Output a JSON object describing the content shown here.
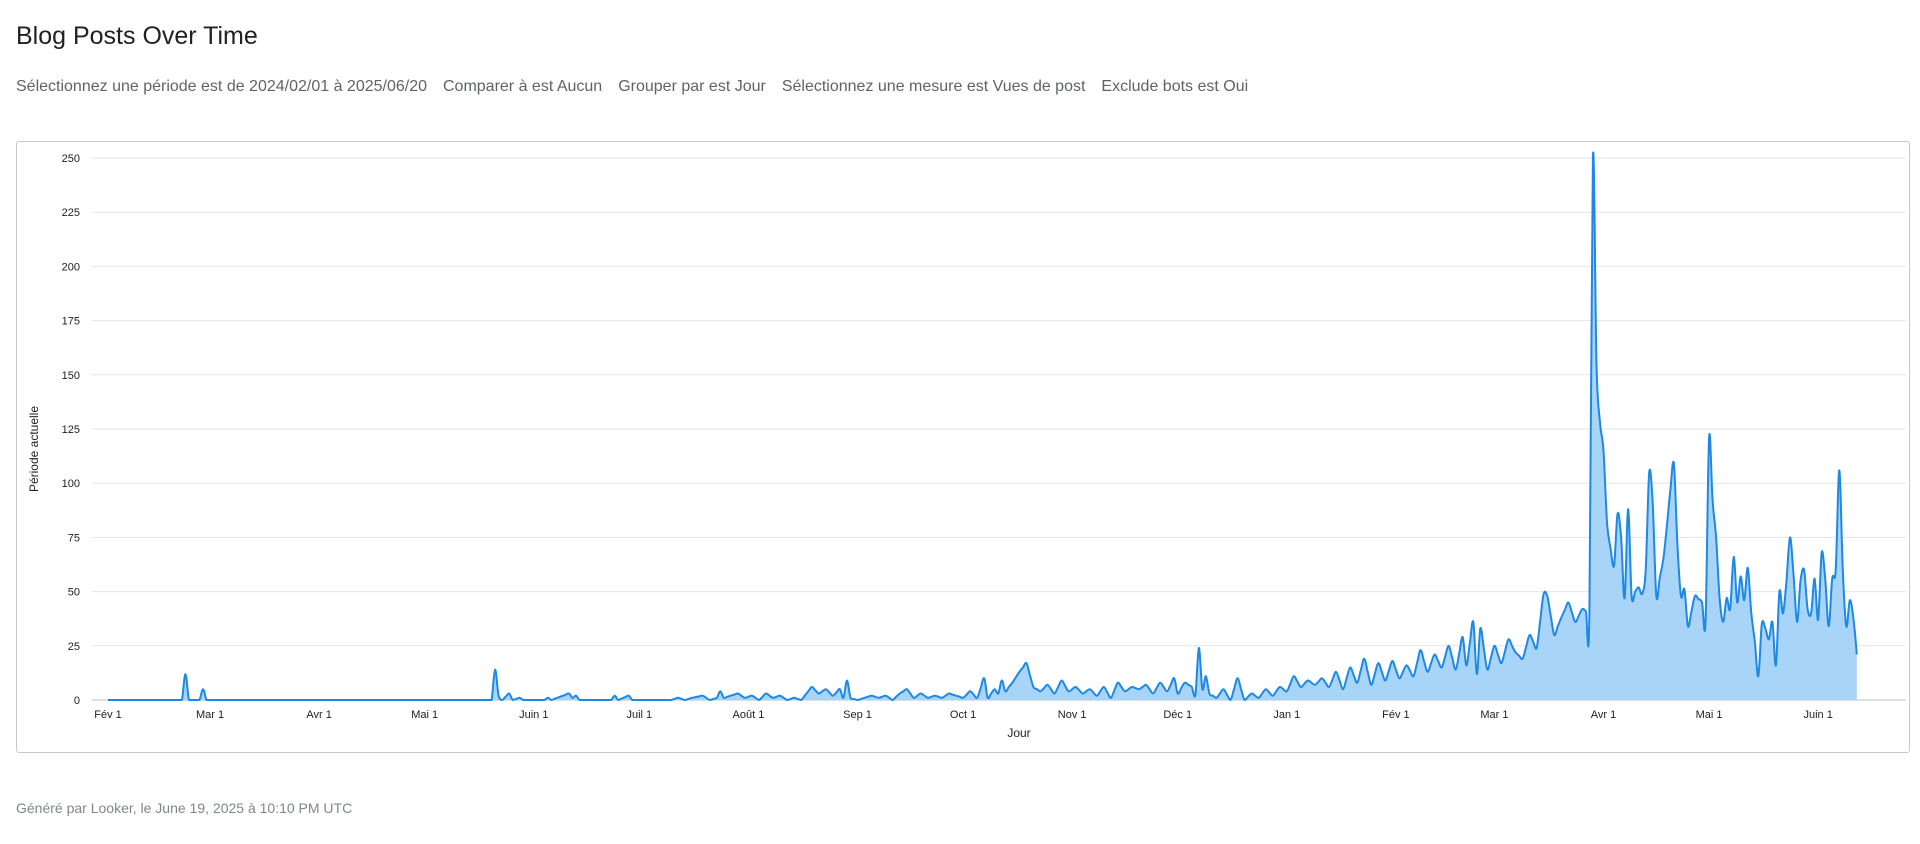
{
  "page": {
    "title": "Blog Posts Over Time",
    "filters": [
      "Sélectionnez une période est de 2024/02/01 à 2025/06/20",
      "Comparer à est Aucun",
      "Grouper par est Jour",
      "Sélectionnez une mesure est Vues de post",
      "Exclude bots est Oui"
    ],
    "footer": "Généré par Looker, le June 19, 2025 à 10:10 PM UTC"
  },
  "colors": {
    "line": "#1e88e5",
    "fill": "#a8d4f7",
    "grid": "#e3e5e8",
    "text": "#202124",
    "muted": "#5f6368"
  },
  "chart_data": {
    "type": "area",
    "xlabel": "Jour",
    "ylabel": "Période actuelle",
    "ylim": [
      0,
      250
    ],
    "y_ticks": [
      0,
      25,
      50,
      75,
      100,
      125,
      150,
      175,
      200,
      225,
      250
    ],
    "x_start": "2024-02-01",
    "x_end": "2025-06-20",
    "x_tick_labels": [
      {
        "date": "2024-02-01",
        "label": "Fév 1"
      },
      {
        "date": "2024-03-01",
        "label": "Mar 1"
      },
      {
        "date": "2024-04-01",
        "label": "Avr 1"
      },
      {
        "date": "2024-05-01",
        "label": "Mai 1"
      },
      {
        "date": "2024-06-01",
        "label": "Juin 1"
      },
      {
        "date": "2024-07-01",
        "label": "Juil 1"
      },
      {
        "date": "2024-08-01",
        "label": "Août 1"
      },
      {
        "date": "2024-09-01",
        "label": "Sep 1"
      },
      {
        "date": "2024-10-01",
        "label": "Oct 1"
      },
      {
        "date": "2024-11-01",
        "label": "Nov 1"
      },
      {
        "date": "2024-12-01",
        "label": "Déc 1"
      },
      {
        "date": "2025-01-01",
        "label": "Jan 1"
      },
      {
        "date": "2025-02-01",
        "label": "Fév 1"
      },
      {
        "date": "2025-03-01",
        "label": "Mar 1"
      },
      {
        "date": "2025-04-01",
        "label": "Avr 1"
      },
      {
        "date": "2025-05-01",
        "label": "Mai 1"
      },
      {
        "date": "2025-06-01",
        "label": "Juin 1"
      }
    ],
    "series": [
      {
        "points": [
          [
            "2024-02-01",
            0
          ],
          [
            "2024-02-22",
            0
          ],
          [
            "2024-02-23",
            12
          ],
          [
            "2024-02-24",
            0
          ],
          [
            "2024-02-27",
            0
          ],
          [
            "2024-02-28",
            5
          ],
          [
            "2024-02-29",
            0
          ],
          [
            "2024-05-20",
            0
          ],
          [
            "2024-05-21",
            14
          ],
          [
            "2024-05-22",
            2
          ],
          [
            "2024-05-23",
            0
          ],
          [
            "2024-05-25",
            3
          ],
          [
            "2024-05-26",
            0
          ],
          [
            "2024-05-28",
            1
          ],
          [
            "2024-05-29",
            0
          ],
          [
            "2024-06-04",
            0
          ],
          [
            "2024-06-05",
            1
          ],
          [
            "2024-06-06",
            0
          ],
          [
            "2024-06-11",
            3
          ],
          [
            "2024-06-12",
            1
          ],
          [
            "2024-06-13",
            2
          ],
          [
            "2024-06-14",
            0
          ],
          [
            "2024-06-23",
            0
          ],
          [
            "2024-06-24",
            2
          ],
          [
            "2024-06-25",
            0
          ],
          [
            "2024-06-28",
            2
          ],
          [
            "2024-06-29",
            0
          ],
          [
            "2024-07-10",
            0
          ],
          [
            "2024-07-12",
            1
          ],
          [
            "2024-07-14",
            0
          ],
          [
            "2024-07-16",
            1
          ],
          [
            "2024-07-19",
            2
          ],
          [
            "2024-07-21",
            0
          ],
          [
            "2024-07-23",
            1
          ],
          [
            "2024-07-24",
            4
          ],
          [
            "2024-07-25",
            1
          ],
          [
            "2024-07-27",
            2
          ],
          [
            "2024-07-29",
            3
          ],
          [
            "2024-07-31",
            1
          ],
          [
            "2024-08-02",
            2
          ],
          [
            "2024-08-04",
            0
          ],
          [
            "2024-08-06",
            3
          ],
          [
            "2024-08-08",
            1
          ],
          [
            "2024-08-10",
            2
          ],
          [
            "2024-08-12",
            0
          ],
          [
            "2024-08-14",
            1
          ],
          [
            "2024-08-16",
            0
          ],
          [
            "2024-08-17",
            2
          ],
          [
            "2024-08-19",
            6
          ],
          [
            "2024-08-21",
            3
          ],
          [
            "2024-08-23",
            5
          ],
          [
            "2024-08-25",
            2
          ],
          [
            "2024-08-27",
            5
          ],
          [
            "2024-08-28",
            1
          ],
          [
            "2024-08-29",
            9
          ],
          [
            "2024-08-30",
            1
          ],
          [
            "2024-09-01",
            0
          ],
          [
            "2024-09-03",
            1
          ],
          [
            "2024-09-05",
            2
          ],
          [
            "2024-09-07",
            1
          ],
          [
            "2024-09-09",
            2
          ],
          [
            "2024-09-11",
            0
          ],
          [
            "2024-09-13",
            3
          ],
          [
            "2024-09-15",
            5
          ],
          [
            "2024-09-17",
            1
          ],
          [
            "2024-09-19",
            3
          ],
          [
            "2024-09-21",
            1
          ],
          [
            "2024-09-23",
            2
          ],
          [
            "2024-09-25",
            1
          ],
          [
            "2024-09-27",
            3
          ],
          [
            "2024-09-29",
            2
          ],
          [
            "2024-10-01",
            1
          ],
          [
            "2024-10-03",
            4
          ],
          [
            "2024-10-05",
            1
          ],
          [
            "2024-10-07",
            10
          ],
          [
            "2024-10-08",
            1
          ],
          [
            "2024-10-10",
            5
          ],
          [
            "2024-10-11",
            3
          ],
          [
            "2024-10-12",
            9
          ],
          [
            "2024-10-13",
            4
          ],
          [
            "2024-10-15",
            8
          ],
          [
            "2024-10-17",
            13
          ],
          [
            "2024-10-19",
            17
          ],
          [
            "2024-10-21",
            6
          ],
          [
            "2024-10-23",
            4
          ],
          [
            "2024-10-25",
            7
          ],
          [
            "2024-10-27",
            3
          ],
          [
            "2024-10-29",
            9
          ],
          [
            "2024-10-31",
            4
          ],
          [
            "2024-11-02",
            6
          ],
          [
            "2024-11-04",
            3
          ],
          [
            "2024-11-06",
            5
          ],
          [
            "2024-11-08",
            2
          ],
          [
            "2024-11-10",
            6
          ],
          [
            "2024-11-12",
            1
          ],
          [
            "2024-11-14",
            8
          ],
          [
            "2024-11-16",
            4
          ],
          [
            "2024-11-18",
            6
          ],
          [
            "2024-11-20",
            5
          ],
          [
            "2024-11-22",
            7
          ],
          [
            "2024-11-24",
            3
          ],
          [
            "2024-11-26",
            8
          ],
          [
            "2024-11-28",
            4
          ],
          [
            "2024-11-30",
            10
          ],
          [
            "2024-12-01",
            3
          ],
          [
            "2024-12-03",
            8
          ],
          [
            "2024-12-05",
            6
          ],
          [
            "2024-12-06",
            2
          ],
          [
            "2024-12-07",
            24
          ],
          [
            "2024-12-08",
            5
          ],
          [
            "2024-12-09",
            11
          ],
          [
            "2024-12-10",
            3
          ],
          [
            "2024-12-12",
            1
          ],
          [
            "2024-12-14",
            5
          ],
          [
            "2024-12-16",
            0
          ],
          [
            "2024-12-18",
            10
          ],
          [
            "2024-12-20",
            0
          ],
          [
            "2024-12-22",
            3
          ],
          [
            "2024-12-24",
            1
          ],
          [
            "2024-12-26",
            5
          ],
          [
            "2024-12-28",
            2
          ],
          [
            "2024-12-30",
            6
          ],
          [
            "2025-01-01",
            4
          ],
          [
            "2025-01-03",
            11
          ],
          [
            "2025-01-05",
            6
          ],
          [
            "2025-01-07",
            9
          ],
          [
            "2025-01-09",
            7
          ],
          [
            "2025-01-11",
            10
          ],
          [
            "2025-01-13",
            6
          ],
          [
            "2025-01-15",
            13
          ],
          [
            "2025-01-17",
            5
          ],
          [
            "2025-01-19",
            15
          ],
          [
            "2025-01-21",
            8
          ],
          [
            "2025-01-23",
            19
          ],
          [
            "2025-01-25",
            7
          ],
          [
            "2025-01-27",
            17
          ],
          [
            "2025-01-29",
            9
          ],
          [
            "2025-01-31",
            18
          ],
          [
            "2025-02-02",
            10
          ],
          [
            "2025-02-04",
            16
          ],
          [
            "2025-02-06",
            11
          ],
          [
            "2025-02-08",
            23
          ],
          [
            "2025-02-10",
            13
          ],
          [
            "2025-02-12",
            21
          ],
          [
            "2025-02-14",
            15
          ],
          [
            "2025-02-16",
            25
          ],
          [
            "2025-02-18",
            14
          ],
          [
            "2025-02-20",
            29
          ],
          [
            "2025-02-21",
            16
          ],
          [
            "2025-02-23",
            36
          ],
          [
            "2025-02-24",
            12
          ],
          [
            "2025-02-25",
            33
          ],
          [
            "2025-02-27",
            14
          ],
          [
            "2025-03-01",
            25
          ],
          [
            "2025-03-03",
            17
          ],
          [
            "2025-03-05",
            28
          ],
          [
            "2025-03-07",
            22
          ],
          [
            "2025-03-09",
            19
          ],
          [
            "2025-03-11",
            30
          ],
          [
            "2025-03-13",
            24
          ],
          [
            "2025-03-15",
            49
          ],
          [
            "2025-03-16",
            48
          ],
          [
            "2025-03-18",
            30
          ],
          [
            "2025-03-20",
            38
          ],
          [
            "2025-03-22",
            45
          ],
          [
            "2025-03-24",
            36
          ],
          [
            "2025-03-26",
            42
          ],
          [
            "2025-03-28",
            40
          ],
          [
            "2025-03-29",
            250
          ],
          [
            "2025-03-30",
            155
          ],
          [
            "2025-03-31",
            128
          ],
          [
            "2025-04-01",
            115
          ],
          [
            "2025-04-02",
            82
          ],
          [
            "2025-04-03",
            70
          ],
          [
            "2025-04-04",
            62
          ],
          [
            "2025-04-05",
            86
          ],
          [
            "2025-04-06",
            75
          ],
          [
            "2025-04-07",
            47
          ],
          [
            "2025-04-08",
            88
          ],
          [
            "2025-04-09",
            48
          ],
          [
            "2025-04-11",
            52
          ],
          [
            "2025-04-12",
            49
          ],
          [
            "2025-04-13",
            60
          ],
          [
            "2025-04-14",
            105
          ],
          [
            "2025-04-15",
            90
          ],
          [
            "2025-04-16",
            48
          ],
          [
            "2025-04-18",
            65
          ],
          [
            "2025-04-19",
            80
          ],
          [
            "2025-04-20",
            97
          ],
          [
            "2025-04-21",
            109
          ],
          [
            "2025-04-22",
            72
          ],
          [
            "2025-04-23",
            48
          ],
          [
            "2025-04-24",
            51
          ],
          [
            "2025-04-25",
            34
          ],
          [
            "2025-04-27",
            48
          ],
          [
            "2025-04-29",
            45
          ],
          [
            "2025-04-30",
            36
          ],
          [
            "2025-05-01",
            121
          ],
          [
            "2025-05-02",
            92
          ],
          [
            "2025-05-03",
            75
          ],
          [
            "2025-05-04",
            47
          ],
          [
            "2025-05-05",
            36
          ],
          [
            "2025-05-06",
            47
          ],
          [
            "2025-05-07",
            42
          ],
          [
            "2025-05-08",
            66
          ],
          [
            "2025-05-09",
            45
          ],
          [
            "2025-05-10",
            57
          ],
          [
            "2025-05-11",
            46
          ],
          [
            "2025-05-12",
            61
          ],
          [
            "2025-05-13",
            40
          ],
          [
            "2025-05-14",
            27
          ],
          [
            "2025-05-15",
            11
          ],
          [
            "2025-05-16",
            35
          ],
          [
            "2025-05-17",
            33
          ],
          [
            "2025-05-18",
            28
          ],
          [
            "2025-05-19",
            36
          ],
          [
            "2025-05-20",
            16
          ],
          [
            "2025-05-21",
            50
          ],
          [
            "2025-05-22",
            40
          ],
          [
            "2025-05-23",
            55
          ],
          [
            "2025-05-24",
            75
          ],
          [
            "2025-05-25",
            58
          ],
          [
            "2025-05-26",
            36
          ],
          [
            "2025-05-27",
            55
          ],
          [
            "2025-05-28",
            60
          ],
          [
            "2025-05-29",
            42
          ],
          [
            "2025-05-30",
            40
          ],
          [
            "2025-05-31",
            56
          ],
          [
            "2025-06-01",
            37
          ],
          [
            "2025-06-02",
            68
          ],
          [
            "2025-06-03",
            56
          ],
          [
            "2025-06-04",
            34
          ],
          [
            "2025-06-05",
            56
          ],
          [
            "2025-06-06",
            60
          ],
          [
            "2025-06-07",
            106
          ],
          [
            "2025-06-08",
            60
          ],
          [
            "2025-06-09",
            34
          ],
          [
            "2025-06-10",
            46
          ],
          [
            "2025-06-11",
            38
          ],
          [
            "2025-06-12",
            21
          ]
        ]
      }
    ]
  }
}
